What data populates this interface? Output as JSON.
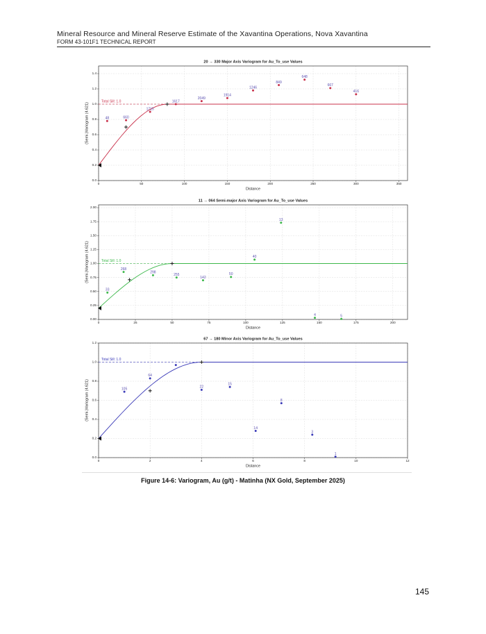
{
  "header": {
    "title": "Mineral Resource and Mineral Reserve Estimate of the Xavantina Operations, Nova Xavantina",
    "subtitle": "FORM 43-101F1 TECHNICAL REPORT"
  },
  "chart_data": [
    {
      "type": "scatter",
      "title": "20 → 330 Major Axis Variogram for Au_To_use Values",
      "x_label": "Distance",
      "y_label": "(Semi-)Variogram (4.621)",
      "color": "#c8304a",
      "grid": true,
      "x": [
        10,
        32,
        60,
        90,
        120,
        150,
        180,
        210,
        240,
        270,
        300
      ],
      "values": [
        0.78,
        0.79,
        0.9,
        1.0,
        1.04,
        1.08,
        1.18,
        1.25,
        1.32,
        1.21,
        1.13
      ],
      "pairs": [
        48,
        660,
        1715,
        1617,
        2049,
        1914,
        1246,
        849,
        648,
        667,
        416
      ],
      "model": {
        "nugget": 0.2,
        "sill": 1.0,
        "range": 80
      },
      "sill_label": "Total Sill: 1.0",
      "crosses": {
        "x": [
          32,
          80
        ],
        "y": [
          0.7,
          1.0
        ]
      },
      "xlim": [
        0,
        360
      ],
      "xticks": [
        0,
        50,
        100,
        150,
        200,
        250,
        300,
        350
      ],
      "ylim": [
        0,
        1.5
      ],
      "yticks": [
        {
          "value": 0,
          "label": "0.0"
        },
        0.2,
        0.4,
        0.6,
        0.8,
        {
          "value": 1,
          "label": "1.0"
        },
        1.2,
        1.4
      ]
    },
    {
      "type": "scatter",
      "title": "11 → 064 Semi-major Axis Variogram for Au_To_use Values",
      "x_label": "Distance",
      "y_label": "(Semi-)Variogram (4.621)",
      "color": "#3cb84a",
      "grid": true,
      "x": [
        6,
        17,
        37,
        53,
        71,
        90,
        106,
        124,
        147,
        165
      ],
      "values": [
        0.48,
        0.85,
        0.79,
        0.75,
        0.7,
        0.76,
        1.07,
        1.73,
        0.03,
        0.01
      ],
      "pairs": [
        33,
        268,
        298,
        255,
        142,
        50,
        40,
        13,
        4,
        5
      ],
      "model": {
        "nugget": 0.2,
        "sill": 1.0,
        "range": 50
      },
      "sill_label": "Total Sill: 1.0",
      "crosses": {
        "x": [
          21,
          50
        ],
        "y": [
          0.71,
          1.0
        ]
      },
      "xlim": [
        0,
        210
      ],
      "xticks": [
        0,
        25,
        50,
        75,
        100,
        125,
        150,
        175,
        200
      ],
      "ylim": [
        0,
        2.05
      ],
      "yticks": [
        {
          "value": 0,
          "label": "0.00"
        },
        0.25,
        {
          "value": 0.5,
          "label": "0.50"
        },
        0.75,
        {
          "value": 1,
          "label": "1.00"
        },
        1.25,
        {
          "value": 1.5,
          "label": "1.50"
        },
        1.75,
        {
          "value": 2,
          "label": "2.00"
        }
      ]
    },
    {
      "type": "scatter",
      "title": "67 → 180 Minor Axis Variogram for Au_To_use Values",
      "x_label": "Distance",
      "y_label": "(Semi-)Variogram (4.621)",
      "color": "#3a3ab8",
      "grid": true,
      "x": [
        1,
        2,
        3,
        4,
        5.1,
        6.1,
        7.1,
        8.3,
        9.2
      ],
      "values": [
        0.69,
        0.83,
        0.97,
        0.71,
        0.74,
        0.28,
        0.57,
        0.24,
        0.01
      ],
      "pairs": [
        105,
        64,
        null,
        22,
        15,
        14,
        8,
        3,
        1
      ],
      "model": {
        "nugget": 0.2,
        "sill": 1.0,
        "range": 4
      },
      "sill_label": "Total Sill: 1.0",
      "crosses": {
        "x": [
          2,
          4
        ],
        "y": [
          0.7,
          1.0
        ]
      },
      "xlim": [
        0,
        12
      ],
      "xticks": [
        0,
        2,
        4,
        6,
        8,
        10,
        12
      ],
      "ylim": [
        0,
        1.2
      ],
      "yticks": [
        {
          "value": 0,
          "label": "0.0"
        },
        0.2,
        0.4,
        0.6,
        0.8,
        {
          "value": 1,
          "label": "1.0"
        },
        1.2
      ]
    }
  ],
  "caption": "Figure 14-6: Variogram, Au (g/t) - Matinha (NX Gold, September 2025)",
  "page_number": "145"
}
